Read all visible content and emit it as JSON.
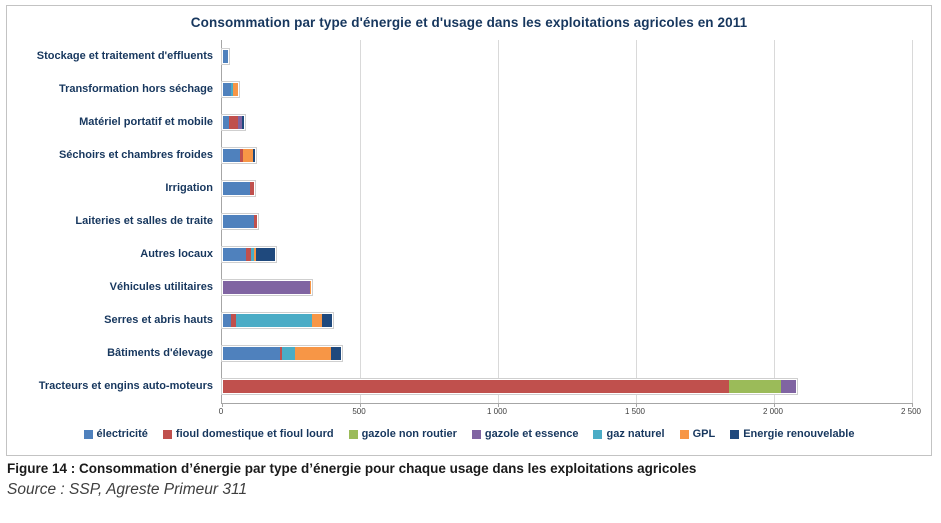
{
  "figure": {
    "caption": "Figure 14 : Consommation d’énergie par type d’énergie pour chaque usage dans les exploitations agricoles",
    "source": "Source : SSP, Agreste Primeur 311"
  },
  "chart_data": {
    "type": "bar",
    "orientation": "horizontal",
    "stacked": true,
    "title": "Consommation par type d'énergie et d'usage dans les exploitations agricoles en 2011",
    "categories": [
      "Stockage et traitement d'effluents",
      "Transformation hors séchage",
      "Matériel portatif et mobile",
      "Séchoirs et chambres froides",
      "Irrigation",
      "Laiteries et salles de traite",
      "Autres locaux",
      "Véhicules utilitaires",
      "Serres et abris hauts",
      "Bâtiments d'élevage",
      "Tracteurs et engins auto-moteurs"
    ],
    "series": [
      {
        "name": "électricité",
        "color": "#4F81BD",
        "values": [
          18,
          29,
          22,
          62,
          98,
          112,
          85,
          0,
          29,
          206,
          0
        ]
      },
      {
        "name": "fioul domestique et fioul lourd",
        "color": "#C0504D",
        "values": [
          0,
          0,
          33,
          12,
          15,
          12,
          18,
          0,
          19,
          8,
          1835
        ]
      },
      {
        "name": "gazole non routier",
        "color": "#9BBB59",
        "values": [
          0,
          0,
          0,
          0,
          0,
          0,
          0,
          0,
          0,
          0,
          190
        ]
      },
      {
        "name": "gazole et essence",
        "color": "#8064A2",
        "values": [
          0,
          0,
          15,
          0,
          0,
          0,
          0,
          315,
          0,
          0,
          55
        ]
      },
      {
        "name": "gaz naturel",
        "color": "#4BACC6",
        "values": [
          0,
          7,
          0,
          0,
          0,
          0,
          11,
          0,
          275,
          47,
          0
        ]
      },
      {
        "name": "GPL",
        "color": "#F79646",
        "values": [
          0,
          17,
          0,
          36,
          0,
          0,
          7,
          4,
          36,
          130,
          0
        ]
      },
      {
        "name": "Energie renouvelable",
        "color": "#1F497D",
        "values": [
          0,
          0,
          7,
          8,
          0,
          0,
          69,
          0,
          36,
          36,
          0
        ]
      }
    ],
    "xlim": [
      0,
      2500
    ],
    "x_ticks": [
      {
        "value": 0,
        "label": "0"
      },
      {
        "value": 500,
        "label": "500"
      },
      {
        "value": 1000,
        "label": "1 000"
      },
      {
        "value": 1500,
        "label": "1 500"
      },
      {
        "value": 2000,
        "label": "2 000"
      },
      {
        "value": 2500,
        "label": "2 500"
      }
    ],
    "grid": true,
    "legend_position": "bottom"
  }
}
